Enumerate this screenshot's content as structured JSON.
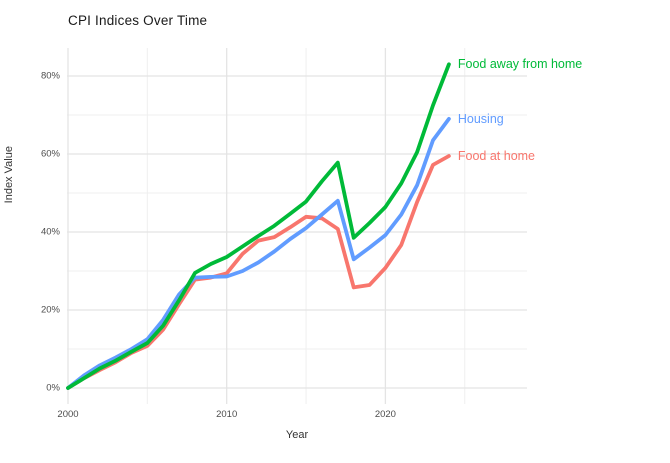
{
  "title": "CPI Indices Over Time",
  "axes": {
    "x_label": "Year",
    "y_label": "Index Value",
    "x_ticks": [
      {
        "label": "2000",
        "year": 2000
      },
      {
        "label": "2010",
        "year": 2010
      },
      {
        "label": "2020",
        "year": 2020
      }
    ],
    "y_ticks": [
      {
        "label": "0%",
        "value": 0
      },
      {
        "label": "20%",
        "value": 20
      },
      {
        "label": "40%",
        "value": 40
      },
      {
        "label": "60%",
        "value": 60
      },
      {
        "label": "80%",
        "value": 80
      }
    ]
  },
  "colors": {
    "grid_major": "#e4e4e4",
    "grid_minor": "#efefef",
    "title_text": "#1a1a1a",
    "axis_text": "#4d4d4d"
  },
  "chart_data": {
    "type": "line",
    "title": "CPI Indices Over Time",
    "xlabel": "Year",
    "ylabel": "Index Value",
    "x": [
      2000,
      2001,
      2002,
      2003,
      2004,
      2005,
      2006,
      2007,
      2008,
      2009,
      2010,
      2011,
      2012,
      2013,
      2014,
      2015,
      2016,
      2017,
      2018,
      2019,
      2020,
      2021,
      2022,
      2023,
      2024
    ],
    "series": [
      {
        "name": "Food at home",
        "color": "#F8766D",
        "values": [
          0,
          2.5,
          4.6,
          6.6,
          9.0,
          10.8,
          15.0,
          21.5,
          27.8,
          28.3,
          29.4,
          34.4,
          37.8,
          38.7,
          41.2,
          43.9,
          43.5,
          40.8,
          25.8,
          26.4,
          30.8,
          36.7,
          47.7,
          57.2,
          59.5
        ]
      },
      {
        "name": "Housing",
        "color": "#619CFF",
        "values": [
          0,
          3.2,
          5.8,
          7.8,
          10.0,
          12.5,
          17.5,
          24.0,
          28.3,
          28.5,
          28.6,
          30.0,
          32.2,
          35.0,
          38.2,
          41.0,
          44.5,
          48.0,
          33.0,
          36.0,
          39.2,
          44.5,
          52.0,
          63.5,
          69.0
        ]
      },
      {
        "name": "Food away from home",
        "color": "#00BA38",
        "values": [
          0,
          2.5,
          5.0,
          7.0,
          9.3,
          11.5,
          16.0,
          22.5,
          29.5,
          31.8,
          33.6,
          36.3,
          39.0,
          41.6,
          44.7,
          47.8,
          53.0,
          57.8,
          38.5,
          42.3,
          46.4,
          52.5,
          60.5,
          72.5,
          83.0
        ]
      }
    ],
    "xlim": [
      2000,
      2029
    ],
    "ylim": [
      -4.1,
      87.2
    ],
    "x_major_breaks": [
      2000,
      2010,
      2020
    ],
    "x_minor_breaks": [
      2005,
      2015,
      2025
    ],
    "y_major_breaks": [
      0,
      20,
      40,
      60,
      80
    ],
    "y_minor_breaks": [
      10,
      30,
      50,
      70
    ],
    "grid": true,
    "legend_position": "labels-at-line-ends"
  }
}
